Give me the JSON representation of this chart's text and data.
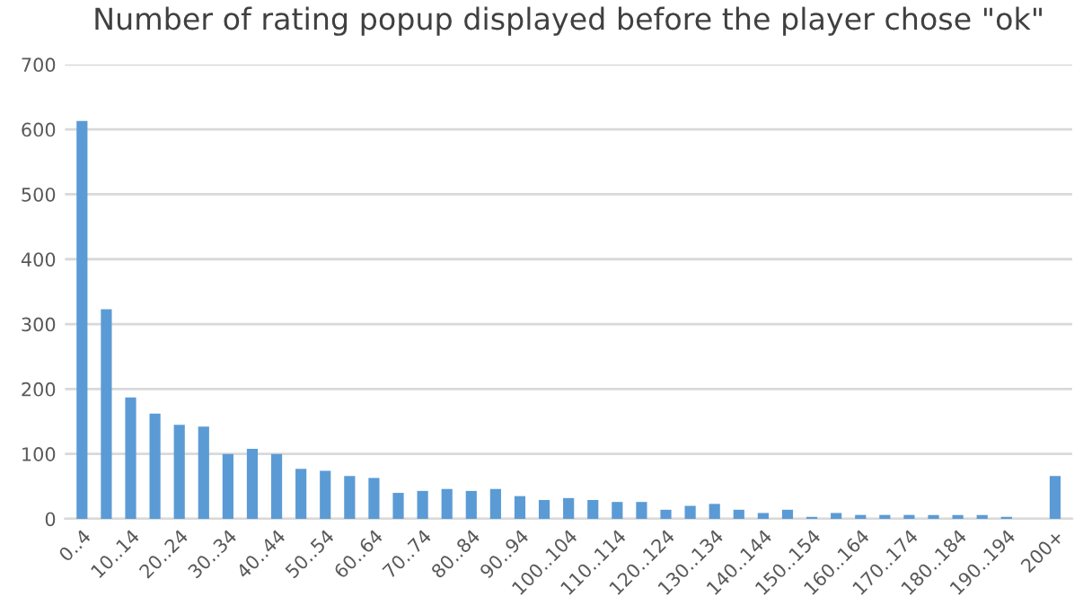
{
  "chart_data": {
    "type": "bar",
    "title": "Number of rating popup displayed before the player chose \"ok\"",
    "categories": [
      "0..4",
      null,
      "10..14",
      null,
      "20..24",
      null,
      "30..34",
      null,
      "40..44",
      null,
      "50..54",
      null,
      "60..64",
      null,
      "70..74",
      null,
      "80..84",
      null,
      "90..94",
      null,
      "100..104",
      null,
      "110..114",
      null,
      "120..124",
      null,
      "130..134",
      null,
      "140..144",
      null,
      "150..154",
      null,
      "160..164",
      null,
      "170..174",
      null,
      "180..184",
      null,
      "190..194",
      null,
      "200+"
    ],
    "values": [
      613,
      323,
      187,
      162,
      145,
      142,
      100,
      108,
      100,
      77,
      74,
      66,
      63,
      40,
      43,
      46,
      43,
      46,
      35,
      29,
      32,
      29,
      26,
      26,
      14,
      20,
      23,
      14,
      9,
      14,
      3,
      9,
      6,
      6,
      6,
      6,
      6,
      6,
      3,
      0,
      66
    ],
    "color": "#5b9bd5",
    "ylim": [
      0,
      700
    ],
    "yticks": [
      0,
      100,
      200,
      300,
      400,
      500,
      600,
      700
    ],
    "grid": "y",
    "legend": false
  }
}
